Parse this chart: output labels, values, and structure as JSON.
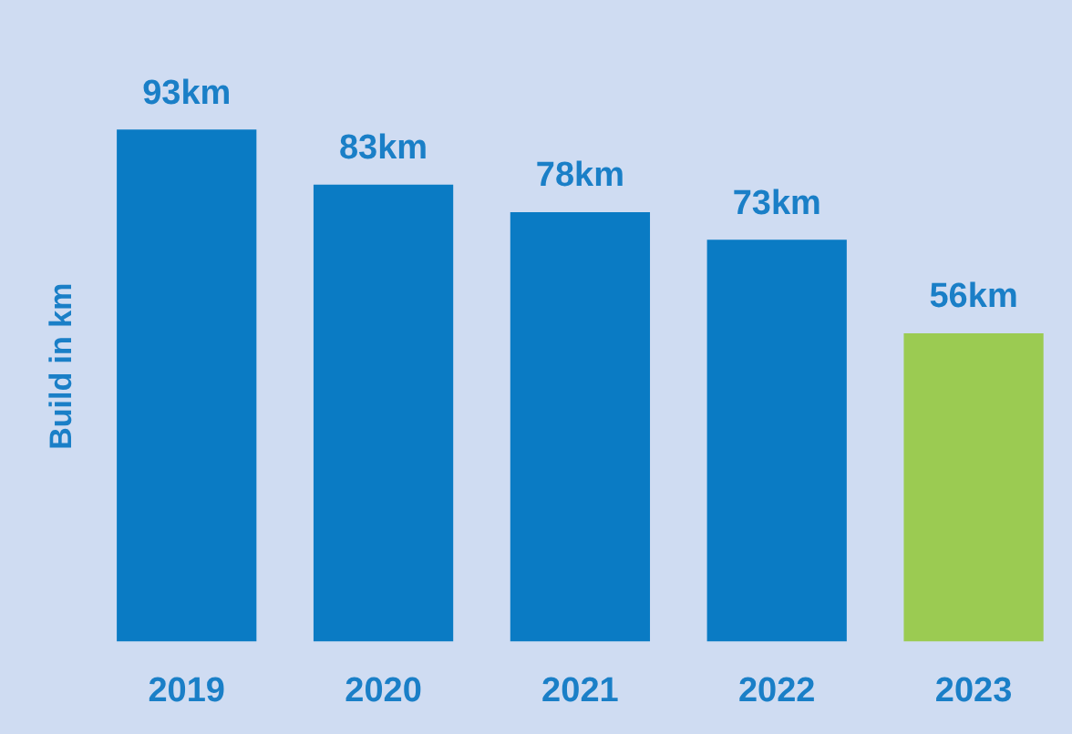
{
  "chart_data": {
    "type": "bar",
    "ylabel": "Build in km",
    "categories": [
      "2019",
      "2020",
      "2021",
      "2022",
      "2023"
    ],
    "values": [
      93,
      83,
      78,
      73,
      56
    ],
    "value_labels": [
      "93km",
      "83km",
      "78km",
      "73km",
      "56km"
    ],
    "colors": [
      "#0a7bc4",
      "#0a7bc4",
      "#0a7bc4",
      "#0a7bc4",
      "#9bcb52"
    ],
    "grid": false,
    "legend": false
  }
}
